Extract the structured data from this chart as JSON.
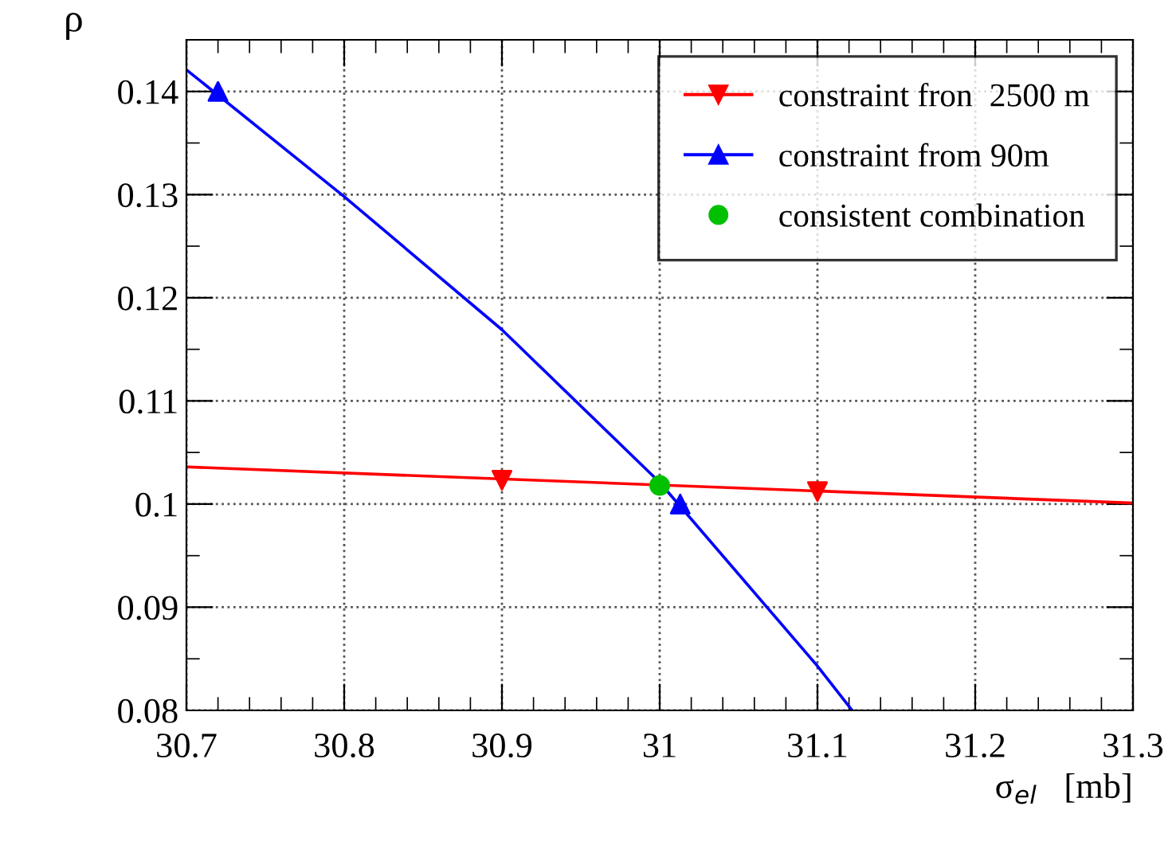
{
  "chart_data": {
    "type": "line",
    "xlabel": "σ$_{el}$   [mb]",
    "ylabel": "ρ",
    "xlim": [
      30.7,
      31.3
    ],
    "xticks": [
      30.7,
      30.8,
      30.9,
      31,
      31.1,
      31.2,
      31.3
    ],
    "ylim": [
      0.08,
      0.145
    ],
    "yticks": [
      0.08,
      0.09,
      0.1,
      0.11,
      0.12,
      0.13,
      0.14
    ],
    "grid": true,
    "legend": "top right",
    "line_style": "solid",
    "series": [
      {
        "color": "#ff0000",
        "x": [
          30.7,
          31.3
        ],
        "values": [
          0.1036,
          0.1001
        ],
        "marker": "none"
      },
      {
        "color": "#0000ff",
        "x": [
          30.7,
          30.8,
          30.9,
          31.0,
          31.1,
          31.122
        ],
        "values": [
          0.1421,
          0.1298,
          0.1169,
          0.1021,
          0.0843,
          0.08
        ],
        "marker": "none"
      },
      {
        "type": "scatter",
        "name": "constraint fron  2500 m",
        "color": "#ff0000",
        "x": [
          30.9,
          31.1
        ],
        "values": [
          0.1023,
          0.1012
        ],
        "marker": "triangle_down"
      },
      {
        "type": "scatter",
        "name": "constraint from 90m",
        "color": "#0000ff",
        "x": [
          30.72,
          31.013
        ],
        "values": [
          0.14,
          0.1
        ],
        "marker": "triangle"
      },
      {
        "type": "scatter",
        "name": "consistent combination",
        "color": "#00c000",
        "x": [
          31.0
        ],
        "values": [
          0.1018
        ],
        "marker": "circle"
      }
    ]
  }
}
